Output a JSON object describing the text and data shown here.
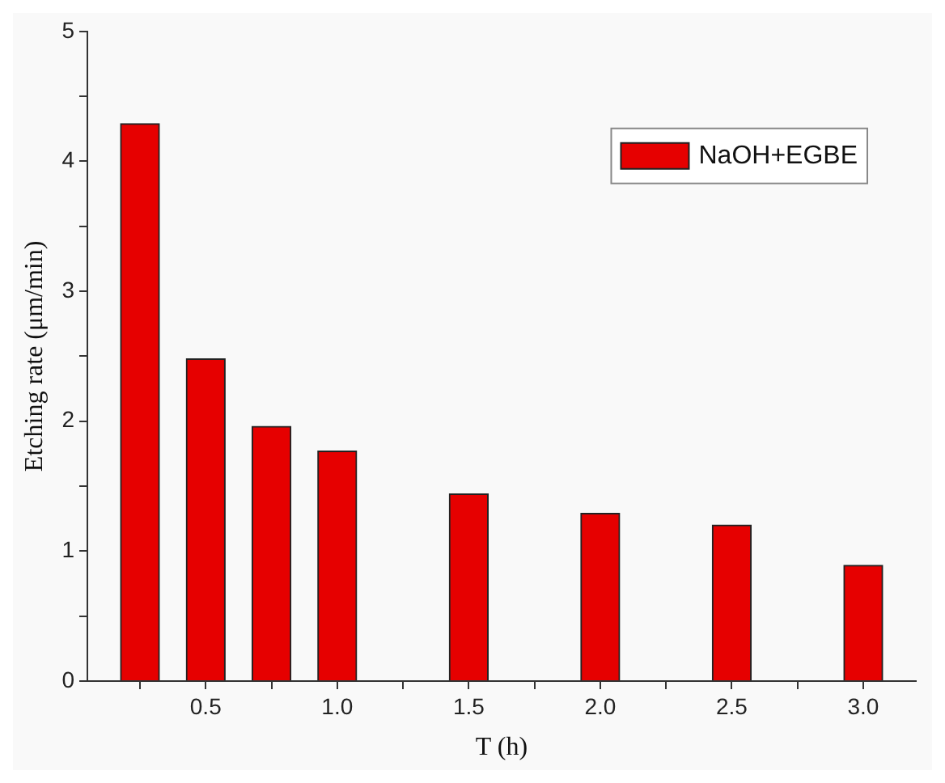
{
  "chart_data": {
    "type": "bar",
    "xlabel": "T (h)",
    "ylabel": "Etching rate (μm/min)",
    "x": [
      0.25,
      0.5,
      0.75,
      1.0,
      1.5,
      2.0,
      2.5,
      3.0
    ],
    "series": [
      {
        "name": "NaOH+EGBE",
        "color": "#e60000",
        "values": [
          4.29,
          2.48,
          1.96,
          1.77,
          1.44,
          1.29,
          1.2,
          0.89
        ]
      }
    ],
    "xlim": [
      0.05,
      3.2
    ],
    "xticks": [
      {
        "value": 0.25,
        "label": null
      },
      {
        "value": 0.5,
        "label": "0.5"
      },
      {
        "value": 0.75,
        "label": null
      },
      {
        "value": 1.0,
        "label": "1.0"
      },
      {
        "value": 1.25,
        "label": null
      },
      {
        "value": 1.5,
        "label": "1.5"
      },
      {
        "value": 1.75,
        "label": null
      },
      {
        "value": 2.0,
        "label": "2.0"
      },
      {
        "value": 2.25,
        "label": null
      },
      {
        "value": 2.5,
        "label": "2.5"
      },
      {
        "value": 2.75,
        "label": null
      },
      {
        "value": 3.0,
        "label": "3.0"
      }
    ],
    "ylim": [
      0,
      5
    ],
    "yticks": [
      0,
      {
        "value": 0.5,
        "label": null
      },
      1,
      {
        "value": 1.5,
        "label": null
      },
      2,
      {
        "value": 2.5,
        "label": null
      },
      3,
      {
        "value": 3.5,
        "label": null
      },
      4,
      {
        "value": 4.5,
        "label": null
      },
      5
    ],
    "legend": "top right",
    "grid": false
  }
}
